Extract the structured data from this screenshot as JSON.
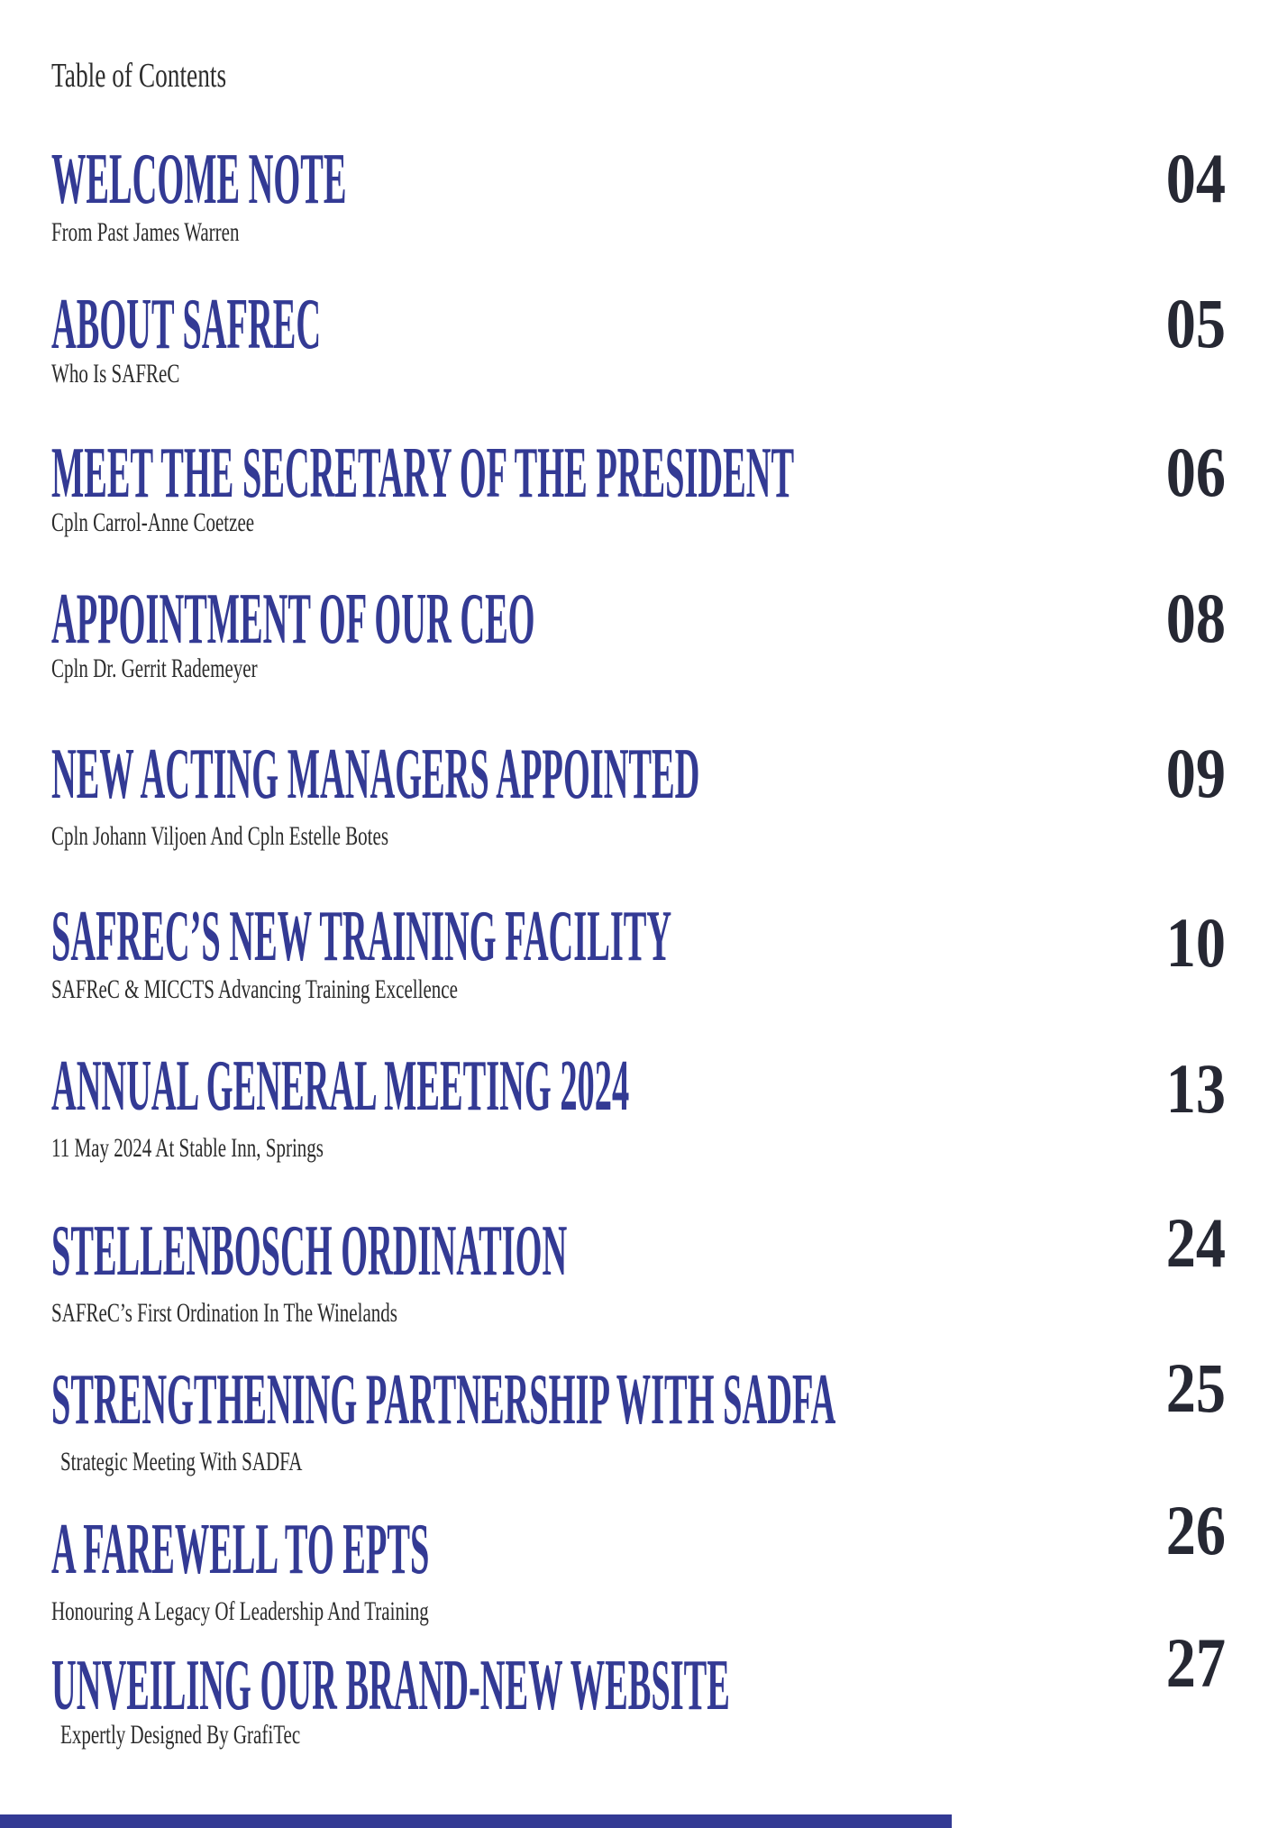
{
  "page": {
    "label": "Table of Contents"
  },
  "colors": {
    "heading": "#333a94",
    "subtitle": "#2b2b2b",
    "page_number": "#262833",
    "accent_bar": "#333a94",
    "background": "#ffffff"
  },
  "toc": {
    "entries": [
      {
        "title": "WELCOME NOTE",
        "subtitle": "From Past James Warren",
        "page": "04"
      },
      {
        "title": "ABOUT SAFREC",
        "subtitle": "Who Is SAFReC",
        "page": "05"
      },
      {
        "title": "MEET THE SECRETARY OF THE PRESIDENT",
        "subtitle": "Cpln Carrol-Anne Coetzee",
        "page": "06"
      },
      {
        "title": "APPOINTMENT OF OUR CEO",
        "subtitle": "Cpln Dr. Gerrit Rademeyer",
        "page": "08"
      },
      {
        "title": "NEW ACTING MANAGERS APPOINTED",
        "subtitle": "Cpln Johann Viljoen And Cpln Estelle Botes",
        "page": "09"
      },
      {
        "title": "SAFREC’S NEW TRAINING FACILITY",
        "subtitle": "SAFReC & MICCTS Advancing Training Excellence",
        "page": "10"
      },
      {
        "title": "ANNUAL GENERAL MEETING 2024",
        "subtitle": "11 May 2024 At Stable Inn, Springs",
        "page": "13"
      },
      {
        "title": "STELLENBOSCH ORDINATION",
        "subtitle": "SAFReC’s First Ordination In The Winelands",
        "page": "24"
      },
      {
        "title": "STRENGTHENING PARTNERSHIP WITH SADFA",
        "subtitle": "Strategic Meeting With SADFA",
        "page": "25"
      },
      {
        "title": "A FAREWELL TO EPTS",
        "subtitle": "Honouring A Legacy Of Leadership And Training",
        "page": "26"
      },
      {
        "title": "UNVEILING OUR BRAND-NEW WEBSITE",
        "subtitle": "Expertly Designed By GrafiTec",
        "page": "27"
      }
    ]
  }
}
